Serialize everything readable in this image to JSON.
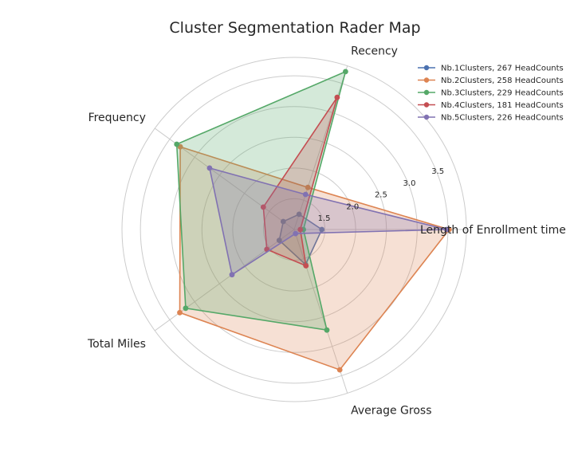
{
  "chart_data": {
    "type": "radar",
    "title": "Cluster Segmentation Rader Map",
    "axes": [
      "Length of Enrollment time",
      "Recency",
      "Frequency",
      "Total Miles",
      "Average Gross"
    ],
    "r_ticks": [
      "1.5",
      "2.0",
      "2.5",
      "3.0",
      "3.5"
    ],
    "r_range": [
      1.0,
      3.8
    ],
    "grid": true,
    "legend_position": "top-right",
    "series": [
      {
        "name": "Nb.1Clusters, 267 HeadCounts",
        "color": "#4c72b0",
        "values": [
          1.45,
          1.26,
          1.22,
          1.3,
          1.6
        ]
      },
      {
        "name": "Nb.2Clusters, 258 HeadCounts",
        "color": "#dd8452",
        "values": [
          3.52,
          1.72,
          3.29,
          3.3,
          3.4
        ]
      },
      {
        "name": "Nb.3Clusters, 229 HeadCounts",
        "color": "#55a868",
        "values": [
          1.15,
          3.7,
          3.36,
          3.18,
          2.72
        ]
      },
      {
        "name": "Nb.4Clusters, 181 HeadCounts",
        "color": "#c44e52",
        "values": [
          1.1,
          3.26,
          1.62,
          1.55,
          1.62
        ]
      },
      {
        "name": "Nb.5Clusters, 226 HeadCounts",
        "color": "#8172b2",
        "values": [
          3.48,
          1.6,
          2.7,
          2.25,
          1.07
        ]
      }
    ]
  }
}
